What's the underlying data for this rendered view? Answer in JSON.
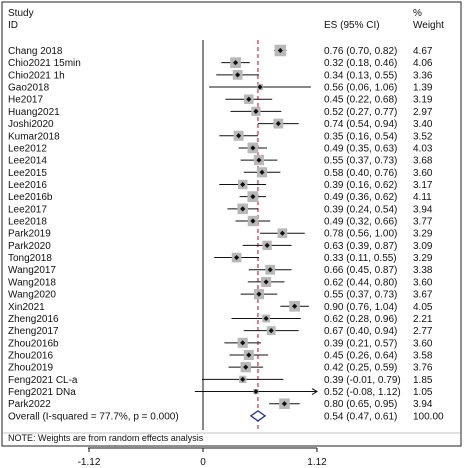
{
  "header": {
    "study_label_1": "Study",
    "study_label_2": "ID",
    "es_label": "ES (95% CI)",
    "weight_label_1": "%",
    "weight_label_2": "Weight"
  },
  "note": "NOTE: Weights are from random effects analysis",
  "chart_data": {
    "type": "forest",
    "x_ticks": [
      "-1.12",
      "0",
      "1.12"
    ],
    "xlim": [
      -1.12,
      1.12
    ],
    "null_line": 0,
    "overall_line": 0.54,
    "studies": [
      {
        "label": "Chang 2018",
        "es": 0.76,
        "lo": 0.7,
        "hi": 0.82,
        "ci_text": "0.76 (0.70, 0.82)",
        "weight": "4.67"
      },
      {
        "label": "Chio2021 15min",
        "es": 0.32,
        "lo": 0.18,
        "hi": 0.46,
        "ci_text": "0.32 (0.18, 0.46)",
        "weight": "4.06"
      },
      {
        "label": "Chio2021 1h",
        "es": 0.34,
        "lo": 0.13,
        "hi": 0.55,
        "ci_text": "0.34 (0.13, 0.55)",
        "weight": "3.36"
      },
      {
        "label": "Gao2018",
        "es": 0.56,
        "lo": 0.06,
        "hi": 1.06,
        "ci_text": "0.56 (0.06, 1.06)",
        "weight": "1.39"
      },
      {
        "label": "He2017",
        "es": 0.45,
        "lo": 0.22,
        "hi": 0.68,
        "ci_text": "0.45 (0.22, 0.68)",
        "weight": "3.19"
      },
      {
        "label": "Huang2021",
        "es": 0.52,
        "lo": 0.27,
        "hi": 0.77,
        "ci_text": "0.52 (0.27, 0.77)",
        "weight": "2.97"
      },
      {
        "label": "Joshi2020",
        "es": 0.74,
        "lo": 0.54,
        "hi": 0.94,
        "ci_text": "0.74 (0.54, 0.94)",
        "weight": "3.40"
      },
      {
        "label": "Kumar2018",
        "es": 0.35,
        "lo": 0.16,
        "hi": 0.54,
        "ci_text": "0.35 (0.16, 0.54)",
        "weight": "3.52"
      },
      {
        "label": "Lee2012",
        "es": 0.49,
        "lo": 0.35,
        "hi": 0.63,
        "ci_text": "0.49 (0.35, 0.63)",
        "weight": "4.03"
      },
      {
        "label": "Lee2014",
        "es": 0.55,
        "lo": 0.37,
        "hi": 0.73,
        "ci_text": "0.55 (0.37, 0.73)",
        "weight": "3.68"
      },
      {
        "label": "Lee2015",
        "es": 0.58,
        "lo": 0.4,
        "hi": 0.76,
        "ci_text": "0.58 (0.40, 0.76)",
        "weight": "3.60"
      },
      {
        "label": "Lee2016",
        "es": 0.39,
        "lo": 0.16,
        "hi": 0.62,
        "ci_text": "0.39 (0.16, 0.62)",
        "weight": "3.17"
      },
      {
        "label": "Lee2016b",
        "es": 0.49,
        "lo": 0.36,
        "hi": 0.62,
        "ci_text": "0.49 (0.36, 0.62)",
        "weight": "4.11"
      },
      {
        "label": "Lee2017",
        "es": 0.39,
        "lo": 0.24,
        "hi": 0.54,
        "ci_text": "0.39 (0.24, 0.54)",
        "weight": "3.94"
      },
      {
        "label": "Lee2018",
        "es": 0.49,
        "lo": 0.32,
        "hi": 0.66,
        "ci_text": "0.49 (0.32, 0.66)",
        "weight": "3.77"
      },
      {
        "label": "Park2019",
        "es": 0.78,
        "lo": 0.56,
        "hi": 1.0,
        "ci_text": "0.78 (0.56, 1.00)",
        "weight": "3.29"
      },
      {
        "label": "Park2020",
        "es": 0.63,
        "lo": 0.39,
        "hi": 0.87,
        "ci_text": "0.63 (0.39, 0.87)",
        "weight": "3.09"
      },
      {
        "label": "Tong2018",
        "es": 0.33,
        "lo": 0.11,
        "hi": 0.55,
        "ci_text": "0.33 (0.11, 0.55)",
        "weight": "3.29"
      },
      {
        "label": "Wang2017",
        "es": 0.66,
        "lo": 0.45,
        "hi": 0.87,
        "ci_text": "0.66 (0.45, 0.87)",
        "weight": "3.38"
      },
      {
        "label": "Wang2018",
        "es": 0.62,
        "lo": 0.44,
        "hi": 0.8,
        "ci_text": "0.62 (0.44, 0.80)",
        "weight": "3.60"
      },
      {
        "label": "Wang2020",
        "es": 0.55,
        "lo": 0.37,
        "hi": 0.73,
        "ci_text": "0.55 (0.37, 0.73)",
        "weight": "3.67"
      },
      {
        "label": "Xin2021",
        "es": 0.9,
        "lo": 0.76,
        "hi": 1.04,
        "ci_text": "0.90 (0.76, 1.04)",
        "weight": "4.05"
      },
      {
        "label": "Zheng2016",
        "es": 0.62,
        "lo": 0.28,
        "hi": 0.96,
        "ci_text": "0.62 (0.28, 0.96)",
        "weight": "2.21"
      },
      {
        "label": "Zheng2017",
        "es": 0.67,
        "lo": 0.4,
        "hi": 0.94,
        "ci_text": "0.67 (0.40, 0.94)",
        "weight": "2.77"
      },
      {
        "label": "Zhou2016b",
        "es": 0.39,
        "lo": 0.21,
        "hi": 0.57,
        "ci_text": "0.39 (0.21, 0.57)",
        "weight": "3.60"
      },
      {
        "label": "Zhou2016",
        "es": 0.45,
        "lo": 0.26,
        "hi": 0.64,
        "ci_text": "0.45 (0.26, 0.64)",
        "weight": "3.58"
      },
      {
        "label": "Zhou2019",
        "es": 0.42,
        "lo": 0.25,
        "hi": 0.59,
        "ci_text": "0.42 (0.25, 0.59)",
        "weight": "3.76"
      },
      {
        "label": "Feng2021 CL-a",
        "es": 0.39,
        "lo": -0.01,
        "hi": 0.79,
        "ci_text": "0.39 (-0.01, 0.79)",
        "weight": "1.85"
      },
      {
        "label": "Feng2021 DNa",
        "es": 0.52,
        "lo": -0.08,
        "hi": 1.12,
        "ci_text": "0.52 (-0.08, 1.12)",
        "weight": "1.05"
      },
      {
        "label": "Park2022",
        "es": 0.8,
        "lo": 0.65,
        "hi": 0.95,
        "ci_text": "0.80 (0.65, 0.95)",
        "weight": "3.94"
      }
    ],
    "overall": {
      "label": "Overall  (I-squared = 77.7%, p = 0.000)",
      "es": 0.54,
      "lo": 0.47,
      "hi": 0.61,
      "ci_text": "0.54 (0.47, 0.61)",
      "weight": "100.00"
    },
    "colors": {
      "box": "#b8b8b8",
      "line": "#111111",
      "overall_line": "#d0021b",
      "diamond": "#1f2f8f",
      "frame": "#222222"
    }
  }
}
